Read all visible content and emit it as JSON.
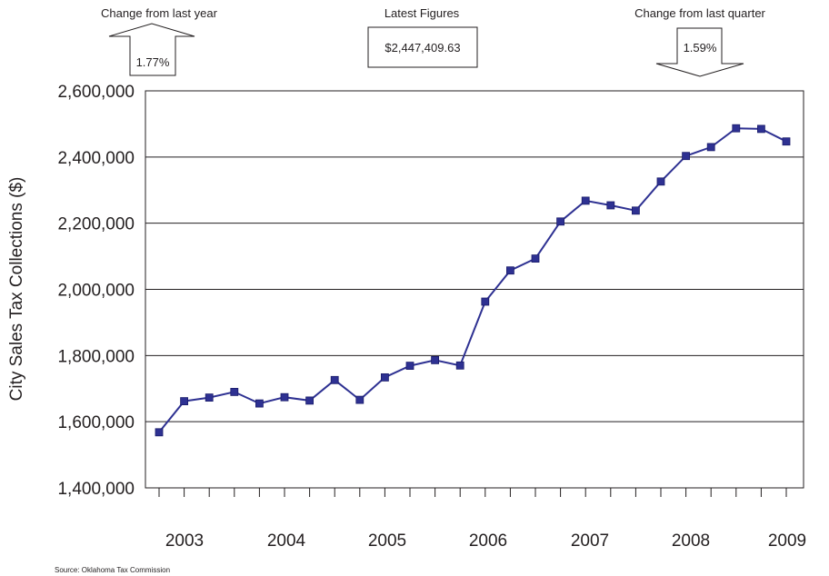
{
  "callouts": {
    "last_year": {
      "title": "Change from last year",
      "value": "1.77%",
      "direction": "up"
    },
    "latest": {
      "title": "Latest Figures",
      "value": "$2,447,409.63"
    },
    "last_quarter": {
      "title": "Change from last quarter",
      "value": "1.59%",
      "direction": "down"
    }
  },
  "source": "Source: Oklahoma Tax Commission",
  "chart_data": {
    "type": "line",
    "title": "",
    "xlabel": "",
    "ylabel": "City Sales Tax Collections ($)",
    "ylim": [
      1400000,
      2600000
    ],
    "yticks": [
      1400000,
      1600000,
      1800000,
      2000000,
      2200000,
      2400000,
      2600000
    ],
    "ytick_labels": [
      "1,400,000",
      "1,600,000",
      "1,800,000",
      "2,000,000",
      "2,200,000",
      "2,400,000",
      "2,600,000"
    ],
    "year_labels": [
      "2003",
      "2004",
      "2005",
      "2006",
      "2007",
      "2008",
      "2009"
    ],
    "grid": "horizontal",
    "series_color": "#2e3192",
    "series": [
      {
        "values": [
          1568000,
          1662000,
          1673000,
          1690000,
          1655000,
          1674000,
          1664000,
          1726000,
          1666000,
          1734000,
          1769000,
          1786000,
          1770000,
          1963000,
          2057000,
          2093000,
          2205000,
          2268000,
          2254000,
          2238000,
          2326000,
          2403000,
          2430000,
          2487000,
          2485000,
          2447000
        ]
      }
    ]
  }
}
